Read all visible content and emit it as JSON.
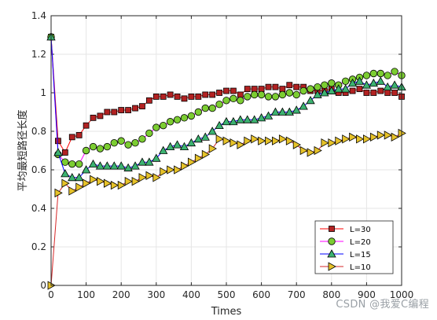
{
  "watermark": "CSDN @我爱C编程",
  "chart_data": {
    "type": "line",
    "xlabel": "Times",
    "ylabel": "平均最短路径长度",
    "xlim": [
      0,
      1000
    ],
    "ylim": [
      0,
      1.4
    ],
    "xticks": [
      0,
      100,
      200,
      300,
      400,
      500,
      600,
      700,
      800,
      900,
      1000
    ],
    "yticks": [
      0,
      0.2,
      0.4,
      0.6,
      0.8,
      1,
      1.2,
      1.4
    ],
    "grid": true,
    "legend_position": "bottom-right",
    "x": [
      0,
      20,
      40,
      60,
      80,
      100,
      120,
      140,
      160,
      180,
      200,
      220,
      240,
      260,
      280,
      300,
      320,
      340,
      360,
      380,
      400,
      420,
      440,
      460,
      480,
      500,
      520,
      540,
      560,
      580,
      600,
      620,
      640,
      660,
      680,
      700,
      720,
      740,
      760,
      780,
      800,
      820,
      840,
      860,
      880,
      900,
      920,
      940,
      960,
      980,
      1000
    ],
    "series": [
      {
        "name": "L=30",
        "color": "#ff0000",
        "marker": "square",
        "marker_fill": "#b22222",
        "values": [
          1.29,
          0.75,
          0.69,
          0.77,
          0.78,
          0.83,
          0.87,
          0.88,
          0.9,
          0.9,
          0.91,
          0.91,
          0.92,
          0.93,
          0.96,
          0.98,
          0.98,
          0.99,
          0.98,
          0.97,
          0.98,
          0.98,
          0.99,
          0.99,
          1.0,
          1.01,
          1.01,
          0.99,
          1.02,
          1.02,
          1.02,
          1.03,
          1.03,
          1.02,
          1.04,
          1.03,
          1.03,
          1.01,
          1.01,
          1.01,
          1.02,
          1.0,
          1.0,
          1.01,
          1.02,
          1.0,
          1.0,
          1.01,
          1.0,
          1.0,
          0.98
        ]
      },
      {
        "name": "L=20",
        "color": "#ff00ff",
        "marker": "circle",
        "marker_fill": "#7ccd32",
        "values": [
          1.29,
          0.68,
          0.64,
          0.63,
          0.63,
          0.7,
          0.72,
          0.71,
          0.72,
          0.74,
          0.75,
          0.73,
          0.74,
          0.76,
          0.79,
          0.82,
          0.83,
          0.85,
          0.86,
          0.87,
          0.88,
          0.9,
          0.92,
          0.92,
          0.94,
          0.96,
          0.97,
          0.96,
          0.98,
          0.99,
          0.99,
          0.98,
          0.98,
          0.99,
          1.0,
          0.99,
          1.01,
          1.02,
          1.03,
          1.04,
          1.05,
          1.04,
          1.06,
          1.07,
          1.08,
          1.09,
          1.1,
          1.1,
          1.09,
          1.11,
          1.09
        ]
      },
      {
        "name": "L=15",
        "color": "#0000ff",
        "marker": "triangle-up",
        "marker_fill": "#3cb371",
        "values": [
          1.29,
          0.69,
          0.58,
          0.56,
          0.56,
          0.6,
          0.63,
          0.62,
          0.62,
          0.62,
          0.62,
          0.61,
          0.62,
          0.64,
          0.64,
          0.66,
          0.7,
          0.72,
          0.73,
          0.72,
          0.74,
          0.76,
          0.77,
          0.8,
          0.83,
          0.85,
          0.85,
          0.86,
          0.86,
          0.86,
          0.87,
          0.88,
          0.9,
          0.9,
          0.9,
          0.91,
          0.93,
          0.96,
          0.99,
          1.0,
          1.01,
          1.02,
          1.02,
          1.05,
          1.06,
          1.04,
          1.05,
          1.06,
          1.03,
          1.04,
          1.03
        ]
      },
      {
        "name": "L=10",
        "color": "#d62728",
        "marker": "triangle-right",
        "marker_fill": "#e6c229",
        "values": [
          0.0,
          0.48,
          0.53,
          0.49,
          0.51,
          0.53,
          0.55,
          0.54,
          0.53,
          0.52,
          0.52,
          0.54,
          0.54,
          0.56,
          0.57,
          0.56,
          0.59,
          0.6,
          0.6,
          0.62,
          0.64,
          0.66,
          0.68,
          0.71,
          0.76,
          0.75,
          0.74,
          0.73,
          0.75,
          0.76,
          0.75,
          0.75,
          0.75,
          0.76,
          0.75,
          0.73,
          0.7,
          0.69,
          0.7,
          0.74,
          0.74,
          0.75,
          0.76,
          0.77,
          0.76,
          0.76,
          0.77,
          0.78,
          0.78,
          0.77,
          0.79
        ]
      }
    ]
  }
}
